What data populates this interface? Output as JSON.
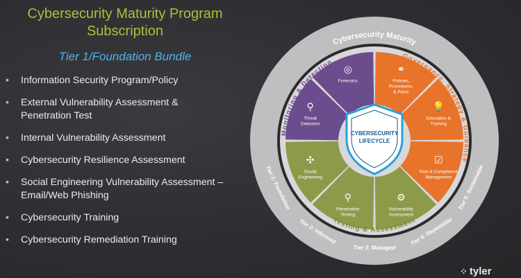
{
  "header": {
    "title_line1": "Cybersecurity Maturity Program",
    "title_line2": "Subscription",
    "subtitle": "Tier 1/Foundation Bundle"
  },
  "items": [
    {
      "line1": "Information Security Program/Policy",
      "line2": ""
    },
    {
      "line1": "External Vulnerability Assessment &",
      "line2": "Penetration Test"
    },
    {
      "line1": "Internal Vulnerability Assessment",
      "line2": ""
    },
    {
      "line1": "Cybersecurity Resilience Assessment",
      "line2": ""
    },
    {
      "line1": "Social Engineering Vulnerability Assessment –",
      "line2": "Email/Web Phishing"
    },
    {
      "line1": "Cybersecurity Training",
      "line2": ""
    },
    {
      "line1": "Cybersecurity Remediation Training",
      "line2": ""
    }
  ],
  "wheel": {
    "outer_top": "Cybersecurity Maturity",
    "tiers": [
      "Tier 1: Foundation",
      "Tier 2: Informed",
      "Tier 3: Managed",
      "Tier 4: Repeatable",
      "Tier 5: Sustainable"
    ],
    "quadrants": {
      "monitoring": "Monitoring & Detection",
      "governance": "Governance, Strategy & Guidance",
      "testing": "Testing & Assessment"
    },
    "center_line1": "CYBERSECURITY",
    "center_line2": "LIFECYCLE",
    "segments": [
      {
        "label1": "Policies,",
        "label2": "Procedures,",
        "label3": "& Plans",
        "icon": "network-icon"
      },
      {
        "label1": "Education &",
        "label2": "Training",
        "label3": "",
        "icon": "lightbulb-icon"
      },
      {
        "label1": "Risk & Compliance",
        "label2": "Management",
        "label3": "",
        "icon": "checklist-icon"
      },
      {
        "label1": "Vulnerability",
        "label2": "Assessment",
        "label3": "",
        "icon": "gears-icon"
      },
      {
        "label1": "Penetration",
        "label2": "Testing",
        "label3": "",
        "icon": "usb-icon"
      },
      {
        "label1": "Social",
        "label2": "Engineering",
        "label3": "",
        "icon": "social-network-icon"
      },
      {
        "label1": "Threat",
        "label2": "Detection",
        "label3": "",
        "icon": "magnifier-icon"
      },
      {
        "label1": "Forensics",
        "label2": "",
        "label3": "",
        "icon": "fingerprint-icon"
      }
    ],
    "colors": {
      "orange": "#e8732a",
      "green": "#8d9a4a",
      "purple": "#6b4c8c",
      "ring": "#c8c8ca",
      "center": "#0f5d8a"
    }
  },
  "logo": "tyler"
}
